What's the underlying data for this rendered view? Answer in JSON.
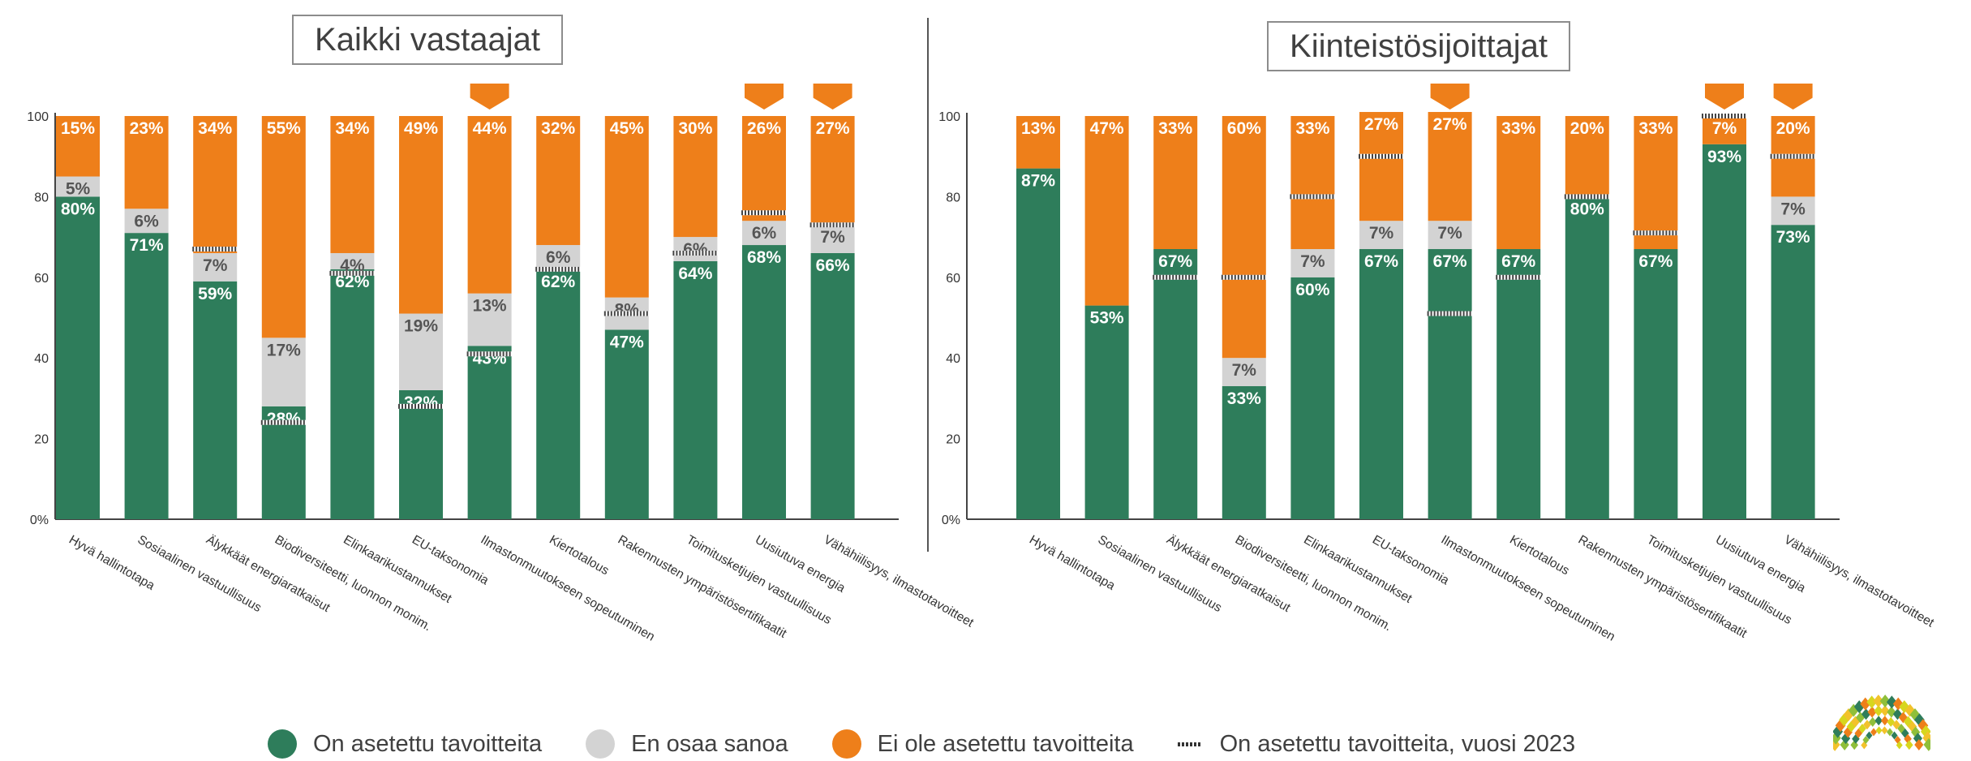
{
  "colors": {
    "set": "#2e7d5b",
    "unknown": "#d3d3d3",
    "not_set": "#ee7f1a",
    "marker_2023": "#444444",
    "logo_palette": [
      "#f2c22b",
      "#8fbf3a",
      "#2e7d5b",
      "#ee7f1a",
      "#d7d61e"
    ]
  },
  "icons": {
    "highlight_marker": "orange-chevron-down-icon",
    "logo": "sunburst-logo-icon"
  },
  "legend": [
    {
      "key": "set",
      "label": "On asetettu tavoitteita",
      "swatch": "circle"
    },
    {
      "key": "unknown",
      "label": "En osaa sanoa",
      "swatch": "circle"
    },
    {
      "key": "not_set",
      "label": "Ei ole asetettu tavoitteita",
      "swatch": "circle"
    },
    {
      "key": "marker_2023",
      "label": "On asetettu tavoitteita, vuosi 2023",
      "swatch": "dotted-line"
    }
  ],
  "chart_data": [
    {
      "type": "bar",
      "stacked": true,
      "title": "Kaikki vastaajat",
      "xlabel": "",
      "ylabel": "",
      "ylim": [
        0,
        100
      ],
      "yticks": [
        "0%",
        "20",
        "40",
        "60",
        "80",
        "100"
      ],
      "grid": false,
      "legend_position": "bottom",
      "categories": [
        "Hyvä hallintotapa",
        "Sosiaalinen vastuullisuus",
        "Älykkäät energiaratkaisut",
        "Biodiversiteetti, luonnon monim.",
        "Elinkaarikustannukset",
        "EU-taksonomia",
        "Ilmastonmuutokseen sopeutuminen",
        "Kiertotalous",
        "Rakennusten ympäristösertifikaatit",
        "Toimitusketjujen vastuullisuus",
        "Uusiutuva energia",
        "Vähähiilisyys, ilmastotavoitteet"
      ],
      "series": [
        {
          "name": "On asetettu tavoitteita",
          "color_key": "set",
          "values": [
            80,
            71,
            59,
            28,
            62,
            32,
            43,
            62,
            47,
            64,
            68,
            66
          ]
        },
        {
          "name": "En osaa sanoa",
          "color_key": "unknown",
          "values": [
            5,
            6,
            7,
            17,
            4,
            19,
            13,
            6,
            8,
            6,
            6,
            7
          ]
        },
        {
          "name": "Ei ole asetettu tavoitteita",
          "color_key": "not_set",
          "values": [
            15,
            23,
            34,
            55,
            34,
            49,
            44,
            32,
            45,
            30,
            26,
            27
          ]
        }
      ],
      "marker_2023": [
        null,
        null,
        67,
        24,
        61,
        28,
        41,
        62,
        51,
        66,
        76,
        73
      ],
      "highlighted": [
        6,
        10,
        11
      ]
    },
    {
      "type": "bar",
      "stacked": true,
      "title": "Kiinteistösijoittajat",
      "xlabel": "",
      "ylabel": "",
      "ylim": [
        0,
        100
      ],
      "yticks": [
        "0%",
        "20",
        "40",
        "60",
        "80",
        "100"
      ],
      "grid": false,
      "legend_position": "bottom",
      "categories": [
        "Hyvä hallintotapa",
        "Sosiaalinen vastuullisuus",
        "Älykkäät energiaratkaisut",
        "Biodiversiteetti, luonnon monim.",
        "Elinkaarikustannukset",
        "EU-taksonomia",
        "Ilmastonmuutokseen sopeutuminen",
        "Kiertotalous",
        "Rakennusten ympäristösertifikaatit",
        "Toimitusketjujen vastuullisuus",
        "Uusiutuva energia",
        "Vähähiilisyys, ilmastotavoitteet"
      ],
      "series": [
        {
          "name": "On asetettu tavoitteita",
          "color_key": "set",
          "values": [
            87,
            53,
            67,
            33,
            60,
            67,
            67,
            67,
            80,
            67,
            93,
            73
          ]
        },
        {
          "name": "En osaa sanoa",
          "color_key": "unknown",
          "values": [
            0,
            0,
            0,
            7,
            7,
            7,
            7,
            0,
            0,
            0,
            0,
            7
          ]
        },
        {
          "name": "Ei ole asetettu tavoitteita",
          "color_key": "not_set",
          "values": [
            13,
            47,
            33,
            60,
            33,
            27,
            27,
            33,
            20,
            33,
            7,
            20
          ]
        }
      ],
      "marker_2023": [
        null,
        null,
        60,
        60,
        80,
        90,
        51,
        60,
        80,
        71,
        100,
        90
      ],
      "highlighted": [
        6,
        10,
        11
      ]
    }
  ]
}
